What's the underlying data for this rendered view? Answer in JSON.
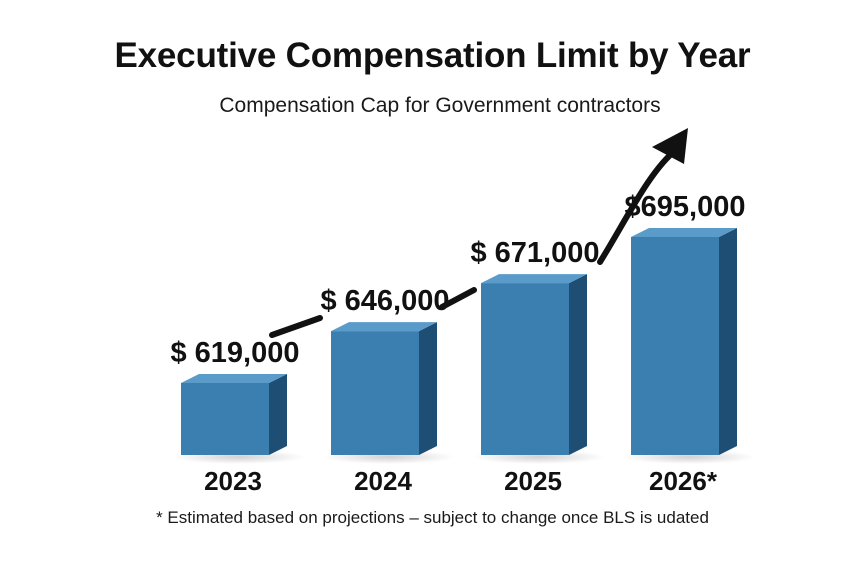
{
  "chart_data": {
    "type": "bar",
    "title": "Executive Compensation Limit by Year",
    "subtitle": "Compensation Cap for Government contractors",
    "categories": [
      "2023",
      "2024",
      "2025",
      "2026*"
    ],
    "values": [
      619000,
      646000,
      671000,
      695000
    ],
    "value_labels": [
      "$ 619,000",
      "$ 646,000",
      "$ 671,000",
      "$695,000"
    ],
    "footnote": "* Estimated based on projections – subject to change once BLS is udated",
    "trend_arrow": true,
    "colors": {
      "bar_front": "#3b7fb0",
      "bar_top": "#5a9bc9",
      "bar_side": "#1e4e73",
      "arrow": "#111111"
    }
  }
}
